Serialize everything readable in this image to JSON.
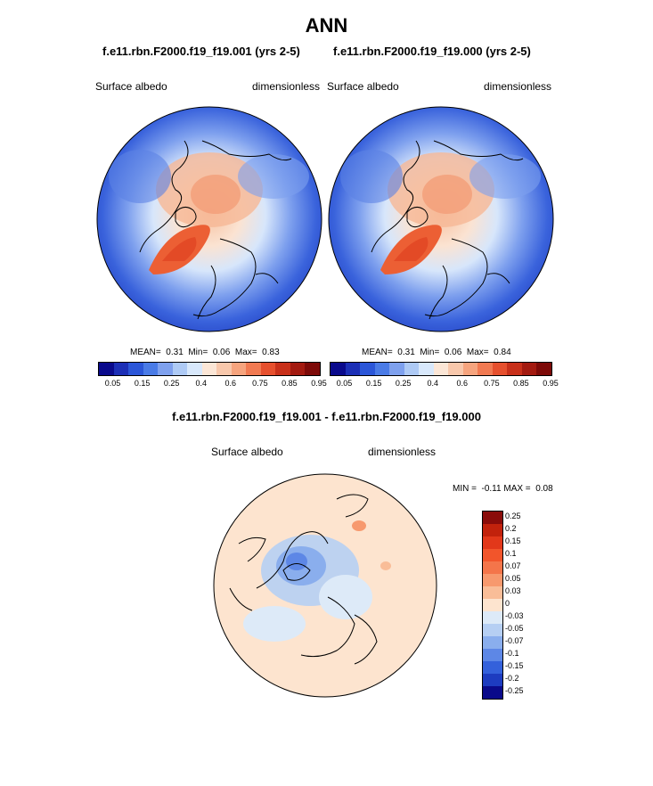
{
  "figure": {
    "title": "ANN",
    "left_panel": {
      "case": "f.e11.rbn.F2000.f19_f19.001 (yrs 2-5)",
      "variable": "Surface albedo",
      "units": "dimensionless",
      "stats": {
        "mean_label": "MEAN=",
        "mean": "0.31",
        "min_label": "Min=",
        "min": "0.06",
        "max_label": "Max=",
        "max": "0.83"
      }
    },
    "right_panel": {
      "case": "f.e11.rbn.F2000.f19_f19.000 (yrs 2-5)",
      "variable": "Surface albedo",
      "units": "dimensionless",
      "stats": {
        "mean_label": "MEAN=",
        "mean": "0.31",
        "min_label": "Min=",
        "min": "0.06",
        "max_label": "Max=",
        "max": "0.84"
      }
    },
    "colorbar_labels": [
      "0.05",
      "0.15",
      "0.25",
      "0.4",
      "0.6",
      "0.75",
      "0.85",
      "0.95"
    ],
    "colorbar_colors": [
      "#0a0a8c",
      "#1c2fb6",
      "#2b56d8",
      "#4a7be6",
      "#7fa1ee",
      "#aecaf5",
      "#d8e8fb",
      "#fbe6d6",
      "#f8c8ac",
      "#f6a47e",
      "#f17a52",
      "#e6502e",
      "#c8301a",
      "#a31a10",
      "#7d0a08"
    ],
    "difference_panel": {
      "title": "f.e11.rbn.F2000.f19_f19.001 - f.e11.rbn.F2000.f19_f19.000",
      "variable": "Surface albedo",
      "units": "dimensionless",
      "minmax": {
        "min_label": "MIN =",
        "min": "-0.11",
        "max_label": "MAX =",
        "max": "0.08"
      },
      "colorbar_labels": [
        "0.25",
        "0.2",
        "0.15",
        "0.1",
        "0.07",
        "0.05",
        "0.03",
        "0",
        "-0.03",
        "-0.05",
        "-0.07",
        "-0.1",
        "-0.15",
        "-0.2",
        "-0.25"
      ],
      "colorbar_colors": [
        "#8a0c0a",
        "#c2220c",
        "#e2381a",
        "#f2552b",
        "#f4754a",
        "#f7996e",
        "#f9bd98",
        "#fde4cf",
        "#ddeaf8",
        "#b6cff3",
        "#8aaeed",
        "#5d87e6",
        "#3461db",
        "#1d3cc0",
        "#0a0a8a"
      ]
    }
  }
}
